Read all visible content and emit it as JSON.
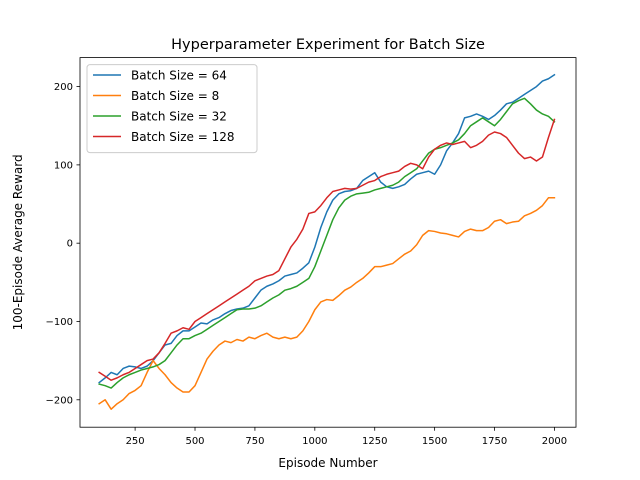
{
  "chart_data": {
    "type": "line",
    "title": "Hyperparameter Experiment for Batch Size",
    "xlabel": "Episode Number",
    "ylabel": "100-Episode Average Reward",
    "xlim": [
      20,
      2090
    ],
    "ylim": [
      -235,
      237
    ],
    "xticks": [
      250,
      500,
      750,
      1000,
      1250,
      1500,
      1750,
      2000
    ],
    "yticks": [
      -200,
      -100,
      0,
      100,
      200
    ],
    "xtick_labels": [
      "250",
      "500",
      "750",
      "1000",
      "1250",
      "1500",
      "1750",
      "2000"
    ],
    "ytick_labels": [
      "−200",
      "−100",
      "0",
      "100",
      "200"
    ],
    "grid": false,
    "legend_position": "upper-left",
    "series": [
      {
        "name": "Batch Size = 64",
        "color": "#1f77b4",
        "x": [
          100,
          125,
          150,
          175,
          200,
          225,
          250,
          275,
          300,
          325,
          350,
          375,
          400,
          425,
          450,
          475,
          500,
          525,
          550,
          575,
          600,
          625,
          650,
          675,
          700,
          725,
          750,
          775,
          800,
          825,
          850,
          875,
          900,
          925,
          950,
          975,
          1000,
          1025,
          1050,
          1075,
          1100,
          1125,
          1150,
          1175,
          1200,
          1225,
          1250,
          1275,
          1300,
          1325,
          1350,
          1375,
          1400,
          1425,
          1450,
          1475,
          1500,
          1525,
          1550,
          1575,
          1600,
          1625,
          1650,
          1675,
          1700,
          1725,
          1750,
          1775,
          1800,
          1825,
          1850,
          1875,
          1900,
          1925,
          1950,
          1975,
          2000
        ],
        "y": [
          -178,
          -172,
          -165,
          -168,
          -160,
          -157,
          -158,
          -160,
          -157,
          -150,
          -140,
          -130,
          -128,
          -118,
          -112,
          -112,
          -107,
          -102,
          -103,
          -98,
          -95,
          -90,
          -86,
          -84,
          -83,
          -80,
          -70,
          -60,
          -55,
          -52,
          -48,
          -42,
          -40,
          -38,
          -32,
          -25,
          -5,
          20,
          40,
          55,
          63,
          66,
          67,
          70,
          80,
          85,
          90,
          78,
          72,
          70,
          72,
          75,
          82,
          88,
          90,
          92,
          88,
          100,
          118,
          128,
          140,
          160,
          162,
          165,
          162,
          158,
          163,
          170,
          178,
          180,
          185,
          190,
          195,
          200,
          207,
          210,
          215
        ]
      },
      {
        "name": "Batch Size = 8",
        "color": "#ff7f0e",
        "x": [
          100,
          125,
          150,
          175,
          200,
          225,
          250,
          275,
          300,
          325,
          350,
          375,
          400,
          425,
          450,
          475,
          500,
          525,
          550,
          575,
          600,
          625,
          650,
          675,
          700,
          725,
          750,
          775,
          800,
          825,
          850,
          875,
          900,
          925,
          950,
          975,
          1000,
          1025,
          1050,
          1075,
          1100,
          1125,
          1150,
          1175,
          1200,
          1225,
          1250,
          1275,
          1300,
          1325,
          1350,
          1375,
          1400,
          1425,
          1450,
          1475,
          1500,
          1525,
          1550,
          1575,
          1600,
          1625,
          1650,
          1675,
          1700,
          1725,
          1750,
          1775,
          1800,
          1825,
          1850,
          1875,
          1900,
          1925,
          1950,
          1975,
          2000
        ],
        "y": [
          -205,
          -200,
          -212,
          -205,
          -200,
          -192,
          -188,
          -182,
          -165,
          -150,
          -160,
          -168,
          -178,
          -185,
          -190,
          -190,
          -182,
          -165,
          -148,
          -138,
          -130,
          -125,
          -127,
          -123,
          -125,
          -120,
          -122,
          -118,
          -115,
          -120,
          -122,
          -120,
          -122,
          -120,
          -112,
          -100,
          -85,
          -75,
          -72,
          -73,
          -67,
          -60,
          -56,
          -50,
          -45,
          -38,
          -30,
          -30,
          -28,
          -26,
          -20,
          -14,
          -10,
          -2,
          10,
          16,
          15,
          13,
          12,
          10,
          8,
          15,
          18,
          16,
          16,
          20,
          28,
          30,
          25,
          27,
          28,
          35,
          38,
          42,
          48,
          58,
          58
        ]
      },
      {
        "name": "Batch Size = 32",
        "color": "#2ca02c",
        "x": [
          100,
          125,
          150,
          175,
          200,
          225,
          250,
          275,
          300,
          325,
          350,
          375,
          400,
          425,
          450,
          475,
          500,
          525,
          550,
          575,
          600,
          625,
          650,
          675,
          700,
          725,
          750,
          775,
          800,
          825,
          850,
          875,
          900,
          925,
          950,
          975,
          1000,
          1025,
          1050,
          1075,
          1100,
          1125,
          1150,
          1175,
          1200,
          1225,
          1250,
          1275,
          1300,
          1325,
          1350,
          1375,
          1400,
          1425,
          1450,
          1475,
          1500,
          1525,
          1550,
          1575,
          1600,
          1625,
          1650,
          1675,
          1700,
          1725,
          1750,
          1775,
          1800,
          1825,
          1850,
          1875,
          1900,
          1925,
          1950,
          1975,
          2000
        ],
        "y": [
          -180,
          -182,
          -185,
          -178,
          -172,
          -168,
          -165,
          -162,
          -160,
          -158,
          -155,
          -150,
          -140,
          -130,
          -122,
          -122,
          -118,
          -115,
          -110,
          -105,
          -100,
          -95,
          -90,
          -85,
          -84,
          -84,
          -83,
          -80,
          -75,
          -70,
          -66,
          -60,
          -58,
          -55,
          -50,
          -45,
          -30,
          -10,
          10,
          30,
          45,
          55,
          60,
          63,
          64,
          65,
          68,
          70,
          72,
          74,
          78,
          85,
          90,
          95,
          105,
          115,
          120,
          122,
          125,
          128,
          132,
          140,
          150,
          155,
          160,
          155,
          150,
          158,
          168,
          178,
          182,
          185,
          178,
          170,
          165,
          162,
          155
        ]
      },
      {
        "name": "Batch Size = 128",
        "color": "#d62728",
        "x": [
          100,
          125,
          150,
          175,
          200,
          225,
          250,
          275,
          300,
          325,
          350,
          375,
          400,
          425,
          450,
          475,
          500,
          525,
          550,
          575,
          600,
          625,
          650,
          675,
          700,
          725,
          750,
          775,
          800,
          825,
          850,
          875,
          900,
          925,
          950,
          975,
          1000,
          1025,
          1050,
          1075,
          1100,
          1125,
          1150,
          1175,
          1200,
          1225,
          1250,
          1275,
          1300,
          1325,
          1350,
          1375,
          1400,
          1425,
          1450,
          1475,
          1500,
          1525,
          1550,
          1575,
          1600,
          1625,
          1650,
          1675,
          1700,
          1725,
          1750,
          1775,
          1800,
          1825,
          1850,
          1875,
          1900,
          1925,
          1950,
          1975,
          2000
        ],
        "y": [
          -165,
          -170,
          -175,
          -172,
          -168,
          -165,
          -160,
          -155,
          -150,
          -148,
          -140,
          -128,
          -115,
          -112,
          -108,
          -110,
          -100,
          -95,
          -90,
          -85,
          -80,
          -75,
          -70,
          -65,
          -60,
          -55,
          -48,
          -45,
          -42,
          -40,
          -35,
          -20,
          -5,
          5,
          18,
          38,
          40,
          48,
          58,
          66,
          68,
          70,
          69,
          70,
          74,
          78,
          80,
          85,
          88,
          90,
          92,
          98,
          102,
          100,
          95,
          110,
          120,
          125,
          128,
          126,
          128,
          130,
          122,
          125,
          130,
          138,
          142,
          140,
          135,
          125,
          115,
          108,
          110,
          105,
          110,
          135,
          158
        ]
      }
    ]
  }
}
